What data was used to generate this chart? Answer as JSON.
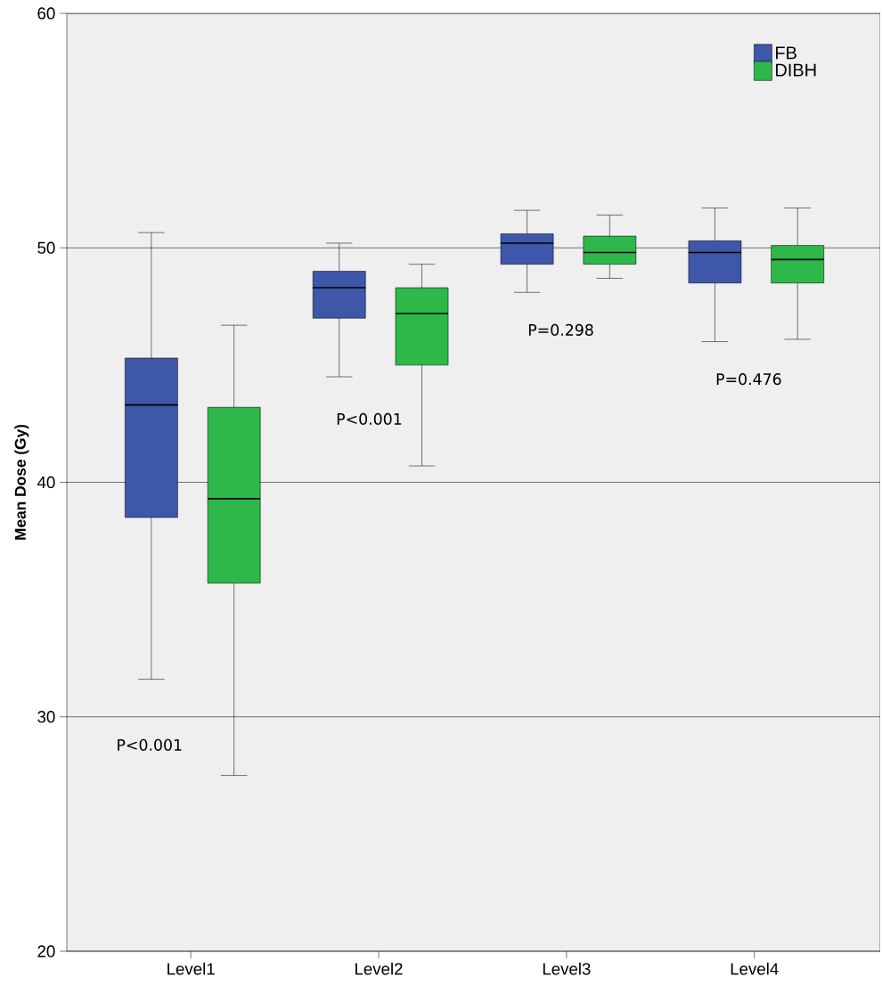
{
  "chart_data": {
    "type": "box",
    "ylabel": "Mean Dose (Gy)",
    "categories": [
      "Level1",
      "Level2",
      "Level3",
      "Level4"
    ],
    "series": [
      {
        "name": "FB",
        "color": "#3f57a8",
        "boxes": [
          {
            "low": 31.6,
            "q1": 38.5,
            "median": 43.3,
            "q3": 45.3,
            "high": 50.65
          },
          {
            "low": 44.5,
            "q1": 47.0,
            "median": 48.3,
            "q3": 49.0,
            "high": 50.2
          },
          {
            "low": 48.1,
            "q1": 49.3,
            "median": 50.2,
            "q3": 50.6,
            "high": 51.6
          },
          {
            "low": 46.0,
            "q1": 48.5,
            "median": 49.8,
            "q3": 50.3,
            "high": 51.7
          }
        ]
      },
      {
        "name": "DIBH",
        "color": "#2eb84a",
        "boxes": [
          {
            "low": 27.5,
            "q1": 35.7,
            "median": 39.3,
            "q3": 43.2,
            "high": 46.7
          },
          {
            "low": 40.7,
            "q1": 45.0,
            "median": 47.2,
            "q3": 48.3,
            "high": 49.3
          },
          {
            "low": 48.7,
            "q1": 49.3,
            "median": 49.8,
            "q3": 50.5,
            "high": 51.4
          },
          {
            "low": 46.1,
            "q1": 48.5,
            "median": 49.5,
            "q3": 50.1,
            "high": 51.7
          }
        ]
      }
    ],
    "ylim": [
      20,
      60
    ],
    "yticks": [
      20,
      30,
      40,
      50,
      60
    ],
    "grid": "y",
    "legend": "top right",
    "annotations": [
      "P<0.001",
      "P<0.001",
      "P=0.298",
      "P=0.476"
    ]
  }
}
